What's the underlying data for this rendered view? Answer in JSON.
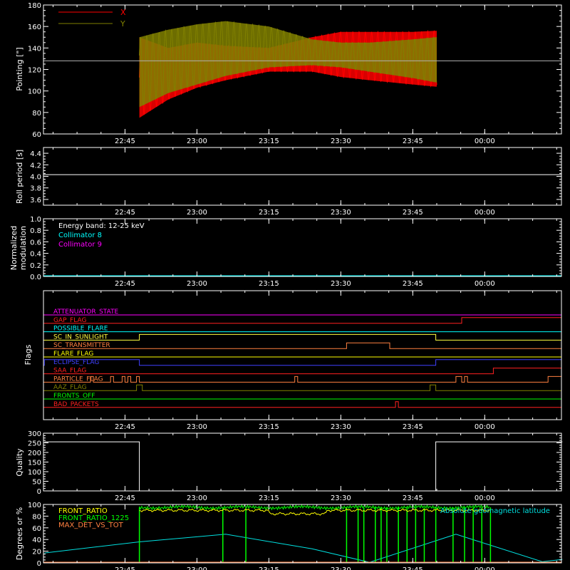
{
  "chart_data": [
    {
      "type": "line",
      "panel": "pointing",
      "ylabel": "Pointing [\"]",
      "ylim": [
        60,
        180
      ],
      "yticks": [
        60,
        80,
        100,
        120,
        140,
        160,
        180
      ],
      "xlim": [
        "22:28",
        "00:16"
      ],
      "xticks": [
        "22:45",
        "23:00",
        "23:15",
        "23:30",
        "23:45",
        "00:00"
      ],
      "reference_line": 128,
      "data_start": "22:48",
      "data_end": "23:50",
      "series": [
        {
          "name": "X",
          "color": "#ff0000",
          "upper_envelope": [
            [
              22.8,
              150
            ],
            [
              22.9,
              140
            ],
            [
              23.0,
              145
            ],
            [
              23.1,
              142
            ],
            [
              23.25,
              140
            ],
            [
              23.4,
              150
            ],
            [
              23.5,
              155
            ],
            [
              23.6,
              155
            ],
            [
              23.75,
              155
            ],
            [
              23.83,
              156
            ]
          ],
          "lower_envelope": [
            [
              22.8,
              75
            ],
            [
              22.9,
              92
            ],
            [
              23.0,
              103
            ],
            [
              23.1,
              110
            ],
            [
              23.25,
              118
            ],
            [
              23.4,
              118
            ],
            [
              23.5,
              113
            ],
            [
              23.6,
              110
            ],
            [
              23.75,
              106
            ],
            [
              23.83,
              104
            ]
          ]
        },
        {
          "name": "Y",
          "color": "#808000",
          "upper_envelope": [
            [
              22.8,
              150
            ],
            [
              22.9,
              157
            ],
            [
              23.0,
              162
            ],
            [
              23.1,
              165
            ],
            [
              23.25,
              160
            ],
            [
              23.4,
              148
            ],
            [
              23.5,
              145
            ],
            [
              23.6,
              145
            ],
            [
              23.75,
              148
            ],
            [
              23.83,
              150
            ]
          ],
          "lower_envelope": [
            [
              22.8,
              85
            ],
            [
              22.9,
              98
            ],
            [
              23.0,
              106
            ],
            [
              23.1,
              114
            ],
            [
              23.25,
              122
            ],
            [
              23.4,
              124
            ],
            [
              23.5,
              122
            ],
            [
              23.6,
              118
            ],
            [
              23.75,
              112
            ],
            [
              23.83,
              108
            ]
          ]
        }
      ]
    },
    {
      "type": "line",
      "panel": "roll_period",
      "ylabel": "Roll period [s]",
      "ylim": [
        3.5,
        4.5
      ],
      "yticks": [
        3.6,
        3.8,
        4.0,
        4.2,
        4.4
      ],
      "xticks": [
        "22:45",
        "23:00",
        "23:15",
        "23:30",
        "23:45",
        "00:00"
      ],
      "series": [
        {
          "name": "",
          "color": "#ffffff",
          "constant": 4.03
        }
      ]
    },
    {
      "type": "line",
      "panel": "modulation",
      "ylabel": "Normalized modulation",
      "ylim": [
        0,
        1
      ],
      "yticks": [
        0.0,
        0.2,
        0.4,
        0.6,
        0.8,
        1.0
      ],
      "xticks": [
        "22:45",
        "23:00",
        "23:15",
        "23:30",
        "23:45",
        "00:00"
      ],
      "legend_title": "Energy band: 12-25 keV",
      "series": [
        {
          "name": "Collimator 8",
          "color": "#00ffff",
          "constant": 0.0
        },
        {
          "name": "Collimator 9",
          "color": "#ff00ff",
          "constant": 0.0
        }
      ]
    },
    {
      "type": "line",
      "panel": "flags",
      "ylabel": "Flags",
      "xticks": [
        "22:45",
        "23:00",
        "23:15",
        "23:30",
        "23:45",
        "00:00"
      ],
      "flags": [
        {
          "name": "ATTENUATOR_STATE",
          "color": "#ff00ff",
          "on": []
        },
        {
          "name": "GAP_FLAG",
          "color": "#ff2020",
          "on": [
            [
              23.92,
              24.27
            ]
          ]
        },
        {
          "name": "POSSIBLE_FLARE",
          "color": "#00ffff",
          "on": []
        },
        {
          "name": "SC_IN_SUNLIGHT",
          "color": "#ffff40",
          "on": [
            [
              22.8,
              23.83
            ]
          ]
        },
        {
          "name": "SC_TRANSMITTER",
          "color": "#ff8040",
          "on": [
            [
              23.52,
              23.67
            ]
          ]
        },
        {
          "name": "FLARE_FLAG",
          "color": "#ffff00",
          "on": []
        },
        {
          "name": "ECLIPSE_FLAG",
          "color": "#4040ff",
          "on": [
            [
              22.47,
              22.8
            ],
            [
              23.83,
              24.27
            ]
          ]
        },
        {
          "name": "SAA_FLAG",
          "color": "#ff2020",
          "on": [
            [
              24.03,
              24.27
            ]
          ]
        },
        {
          "name": "PARTICLE_FLAG",
          "color": "#ff8040",
          "on": [
            [
              22.63,
              22.64
            ],
            [
              22.7,
              22.71
            ],
            [
              22.74,
              22.75
            ],
            [
              22.76,
              22.77
            ],
            [
              22.79,
              22.8
            ],
            [
              23.34,
              23.35
            ],
            [
              23.9,
              23.92
            ],
            [
              23.93,
              23.94
            ],
            [
              24.22,
              24.27
            ]
          ]
        },
        {
          "name": "AAZ_FLAG",
          "color": "#808000",
          "on": [
            [
              22.79,
              22.81
            ],
            [
              23.81,
              23.83
            ]
          ]
        },
        {
          "name": "FRONTS_OFF",
          "color": "#00ff00",
          "on": []
        },
        {
          "name": "BAD_PACKETS",
          "color": "#ff2020",
          "on": [
            [
              23.69,
              23.7
            ]
          ]
        }
      ]
    },
    {
      "type": "line",
      "panel": "quality",
      "ylabel": "Quality",
      "ylim": [
        0,
        300
      ],
      "yticks": [
        0,
        50,
        100,
        150,
        200,
        250,
        300
      ],
      "xticks": [
        "22:45",
        "23:00",
        "23:15",
        "23:30",
        "23:45",
        "00:00"
      ],
      "series": [
        {
          "name": "",
          "color": "#ffffff",
          "points": [
            [
              22.47,
              255
            ],
            [
              22.8,
              255
            ],
            [
              22.8,
              0
            ],
            [
              23.83,
              0
            ],
            [
              23.83,
              255
            ],
            [
              24.27,
              255
            ]
          ]
        }
      ]
    },
    {
      "type": "line",
      "panel": "front_ratio",
      "ylabel": "Degrees or %",
      "ylim": [
        0,
        100
      ],
      "yticks": [
        0,
        20,
        40,
        60,
        80,
        100
      ],
      "xticks": [
        "22:45",
        "23:00",
        "23:15",
        "23:30",
        "23:45",
        "00:00"
      ],
      "series": [
        {
          "name": "FRONT_RATIO",
          "color": "#ffff00",
          "level": 90
        },
        {
          "name": "FRONT_RATIO_1225",
          "color": "#00ff00",
          "level": 95
        },
        {
          "name": "MAX_DET_VS_TOT",
          "color": "#ff8040",
          "level": 0
        },
        {
          "name": "Absolute geomagnetic latitude",
          "color": "#00e0e0",
          "points": [
            [
              22.47,
              17
            ],
            [
              22.8,
              36
            ],
            [
              23.1,
              49
            ],
            [
              23.4,
              24
            ],
            [
              23.6,
              1
            ],
            [
              23.9,
              49
            ],
            [
              24.2,
              2
            ],
            [
              24.27,
              6
            ]
          ]
        }
      ]
    }
  ]
}
